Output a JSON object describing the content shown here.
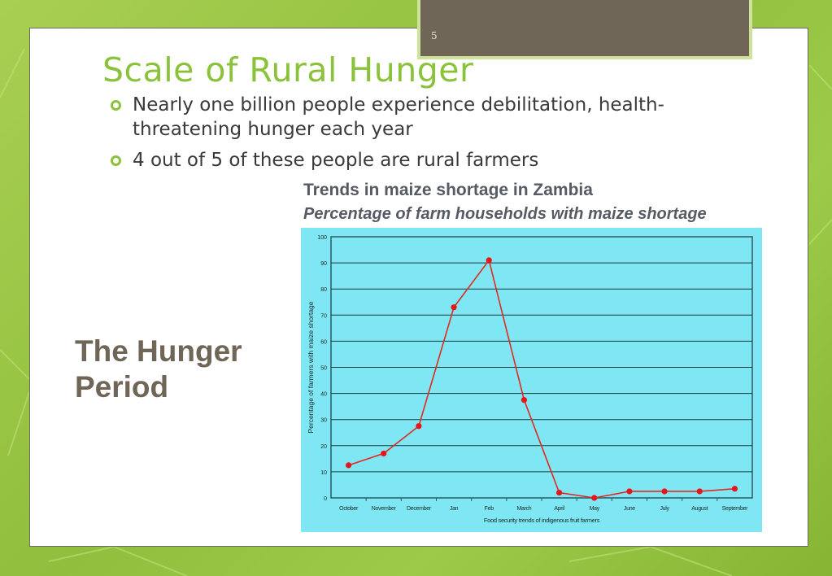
{
  "slide": {
    "number": "5",
    "title": "Scale of Rural Hunger",
    "bullets": [
      "Nearly one billion people experience debilitation, health-threatening hunger each year",
      "4 out of 5 of these people are rural farmers"
    ],
    "side_heading_line1": "The Hunger",
    "side_heading_line2": "Period"
  },
  "chart_data": {
    "type": "line",
    "title": "Trends in maize shortage in Zambia",
    "subtitle": "Percentage of farm households with maize shortage",
    "xlabel": "Food security trends of indigenous fruit farmers",
    "ylabel": "Percentage of farmers with maize shortage",
    "ylim": [
      0,
      100
    ],
    "yticks": [
      0,
      10,
      20,
      30,
      40,
      50,
      60,
      70,
      80,
      90,
      100
    ],
    "categories": [
      "October",
      "November",
      "December",
      "Jan",
      "Feb",
      "March",
      "April",
      "May",
      "June",
      "July",
      "August",
      "September"
    ],
    "series": [
      {
        "values": [
          12.5,
          17,
          27.5,
          73,
          91,
          37.5,
          2,
          0,
          2.5,
          2.5,
          2.5,
          3.5
        ]
      }
    ],
    "grid": true,
    "colors": {
      "background": "#7fe6f3",
      "line": "#e02a20",
      "marker": "#e8141a",
      "grid": "#1a3a3a"
    }
  }
}
